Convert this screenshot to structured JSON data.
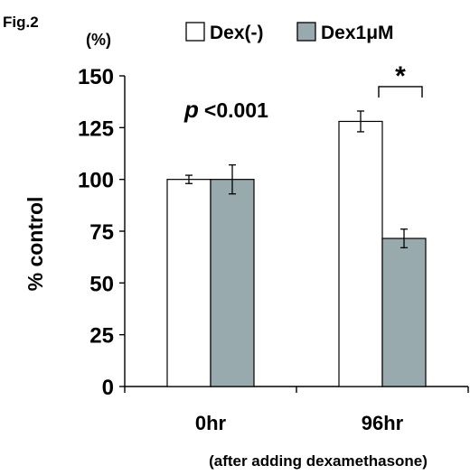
{
  "figure_label": "Fig.2",
  "chart_data": {
    "type": "bar",
    "y_unit": "(%)",
    "ylabel": "% control",
    "xlabel": "(after adding dexamethasone)",
    "ylim": [
      0,
      150
    ],
    "yticks": [
      0,
      25,
      50,
      75,
      100,
      125,
      150
    ],
    "categories": [
      "0hr",
      "96hr"
    ],
    "series": [
      {
        "name": "Dex(-)",
        "color": "#ffffff",
        "values": [
          100,
          128
        ],
        "errors": [
          2,
          5
        ]
      },
      {
        "name": "Dex1μM",
        "color": "#98aaae",
        "values": [
          100,
          71.5
        ],
        "errors": [
          7,
          4.5
        ]
      }
    ],
    "annotations": {
      "p_symbol": "p",
      "p_value": "<0.001",
      "significance": "*"
    },
    "grid": false,
    "legend_position": "top"
  }
}
